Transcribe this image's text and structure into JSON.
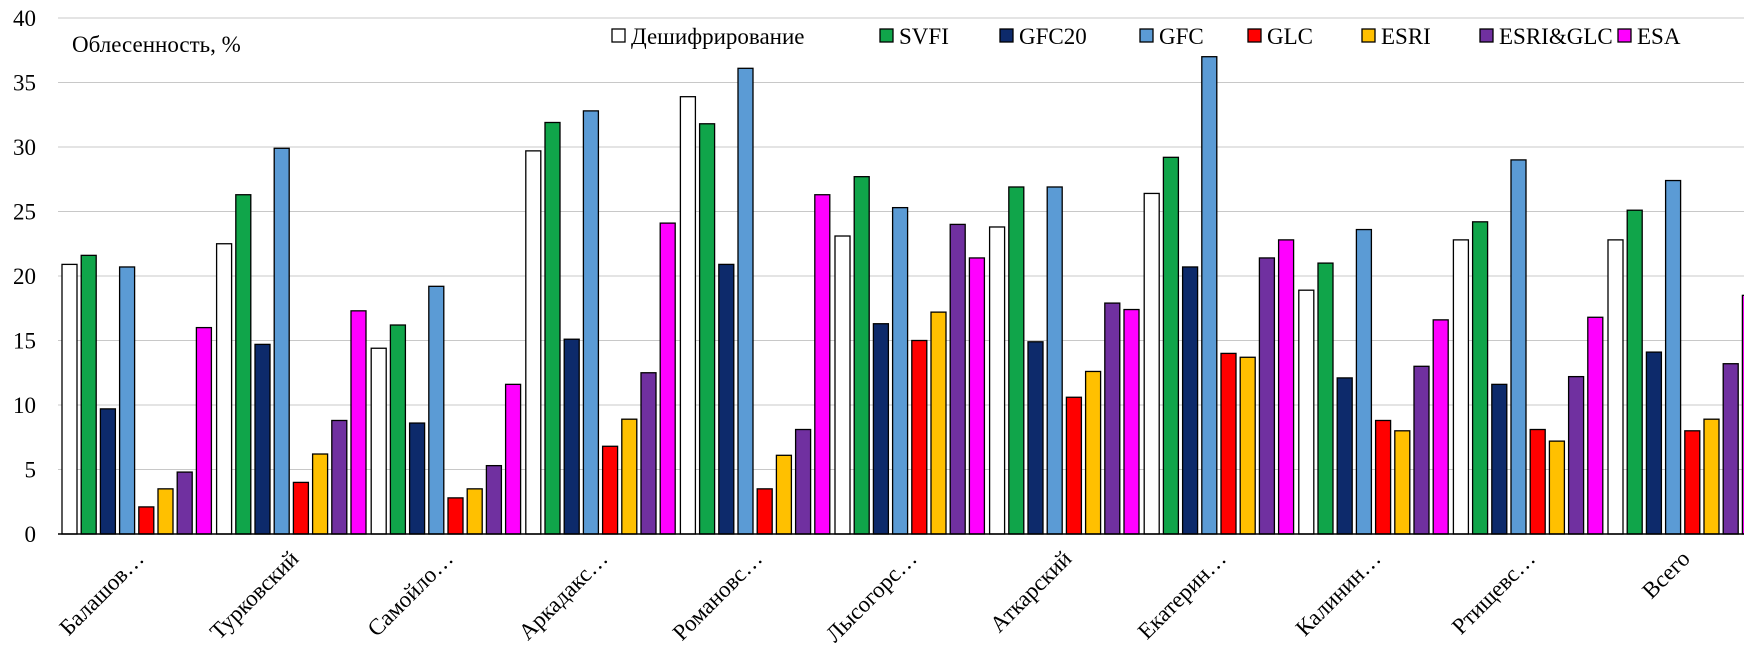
{
  "chart_data": {
    "type": "bar",
    "title": "",
    "ylabel": "Облесенность, %",
    "xlabel": "",
    "ylim": [
      0,
      40
    ],
    "yticks": [
      0,
      5,
      10,
      15,
      20,
      25,
      30,
      35,
      40
    ],
    "grid": true,
    "legend_position": "top",
    "categories": [
      "Балашов…",
      "Турковский",
      "Самойло…",
      "Аркадакс…",
      "Романовс…",
      "Лысогорс…",
      "Аткарский",
      "Екатерин…",
      "Калинин…",
      "Ртищевс…",
      "Всего"
    ],
    "series": [
      {
        "name": "Дешифрирование",
        "color": "#ffffff",
        "values": [
          20.9,
          22.5,
          14.4,
          29.7,
          33.9,
          23.1,
          23.8,
          26.4,
          18.9,
          22.8,
          22.8
        ]
      },
      {
        "name": "SVFI",
        "color": "#10a54a",
        "values": [
          21.6,
          26.3,
          16.2,
          31.9,
          31.8,
          27.7,
          26.9,
          29.2,
          21.0,
          24.2,
          25.1
        ]
      },
      {
        "name": "GFC20",
        "color": "#0d2a6b",
        "values": [
          9.7,
          14.7,
          8.6,
          15.1,
          20.9,
          16.3,
          14.9,
          20.7,
          12.1,
          11.6,
          14.1
        ]
      },
      {
        "name": "GFC",
        "color": "#5b9bd5",
        "values": [
          20.7,
          29.9,
          19.2,
          32.8,
          36.1,
          25.3,
          26.9,
          37.0,
          23.6,
          29.0,
          27.4
        ]
      },
      {
        "name": "GLC",
        "color": "#ff0000",
        "values": [
          2.1,
          4.0,
          2.8,
          6.8,
          3.5,
          15.0,
          10.6,
          14.0,
          8.8,
          8.1,
          8.0
        ]
      },
      {
        "name": "ESRI",
        "color": "#ffc000",
        "values": [
          3.5,
          6.2,
          3.5,
          8.9,
          6.1,
          17.2,
          12.6,
          13.7,
          8.0,
          7.2,
          8.9
        ]
      },
      {
        "name": "ESRI&GLC",
        "color": "#7030a0",
        "values": [
          4.8,
          8.8,
          5.3,
          12.5,
          8.1,
          24.0,
          17.9,
          21.4,
          13.0,
          12.2,
          13.2
        ]
      },
      {
        "name": "ESA",
        "color": "#ff00ff",
        "values": [
          16.0,
          17.3,
          11.6,
          24.1,
          26.3,
          21.4,
          17.4,
          22.8,
          16.6,
          16.8,
          18.5
        ]
      }
    ]
  }
}
